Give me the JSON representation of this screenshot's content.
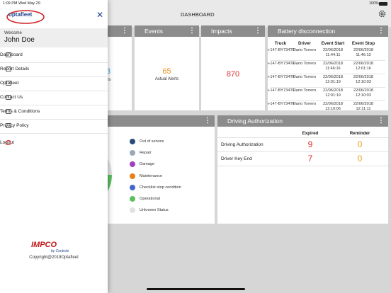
{
  "status_bar": {
    "time": "1:09 PM",
    "date": "Wed May 29",
    "battery": "100%"
  },
  "header": {
    "title": "DASHBOARD"
  },
  "sidebar": {
    "logo": "optafleet",
    "welcome": "Welcome",
    "user": "John Doe",
    "menu": [
      "Dashboard",
      "Report Details",
      "Optafleet",
      "Contact Us",
      "Terms & Conditions",
      "Privacy Policy",
      "Logout"
    ],
    "brand": "IMPCO",
    "brand_sub": "by Controls",
    "copyright": "Copyright@2019Optafleet"
  },
  "cards": [
    {
      "value": "3",
      "label": "es"
    },
    {
      "title": "Events",
      "value": "65",
      "label": "Actual Alerts"
    },
    {
      "title": "Impacts",
      "value": "870"
    }
  ],
  "battery_table": {
    "title": "Battery disconnection",
    "columns": [
      "Truck",
      "Driver",
      "Event Start",
      "Event Stop"
    ],
    "rows": [
      [
        "A-147-BY734TF",
        "Dario Torrero",
        "22/06/2018 11:44:11",
        "22/06/2018 11:46:13"
      ],
      [
        "A-147-BY734TF",
        "Dario Torrero",
        "22/06/2018 11:46:16",
        "22/06/2018 12:01:16"
      ],
      [
        "A-147-BY734TF",
        "Dario Torrero",
        "22/06/2018 12:01:19",
        "22/06/2018 12:10:03"
      ],
      [
        "A-147-BY734TF",
        "Dario Torrero",
        "22/06/2018 12:01:19",
        "22/06/2018 12:10:03"
      ],
      [
        "A-147-BY734TF",
        "Dario Torrero",
        "22/06/2018 12:10:06",
        "22/06/2018 12:11:11"
      ]
    ]
  },
  "status_legend": [
    {
      "label": "Out of service",
      "color": "#2c4a7a"
    },
    {
      "label": "Repair",
      "color": "#9aa9b8"
    },
    {
      "label": "Damage",
      "color": "#a040c0"
    },
    {
      "label": "Maintenance",
      "color": "#e8801a"
    },
    {
      "label": "Checklist stop condition",
      "color": "#4466cc"
    },
    {
      "label": "Operational",
      "color": "#5cc060"
    },
    {
      "label": "Unknown Status",
      "color": "#e2e2e2"
    }
  ],
  "authorization": {
    "title": "Driving Authorization",
    "columns": [
      "Expired",
      "Reminder"
    ],
    "rows": [
      {
        "label": "Driving Authorization",
        "expired": "9",
        "reminder": "0"
      },
      {
        "label": "Driver Key End",
        "expired": "7",
        "reminder": "0"
      }
    ]
  }
}
